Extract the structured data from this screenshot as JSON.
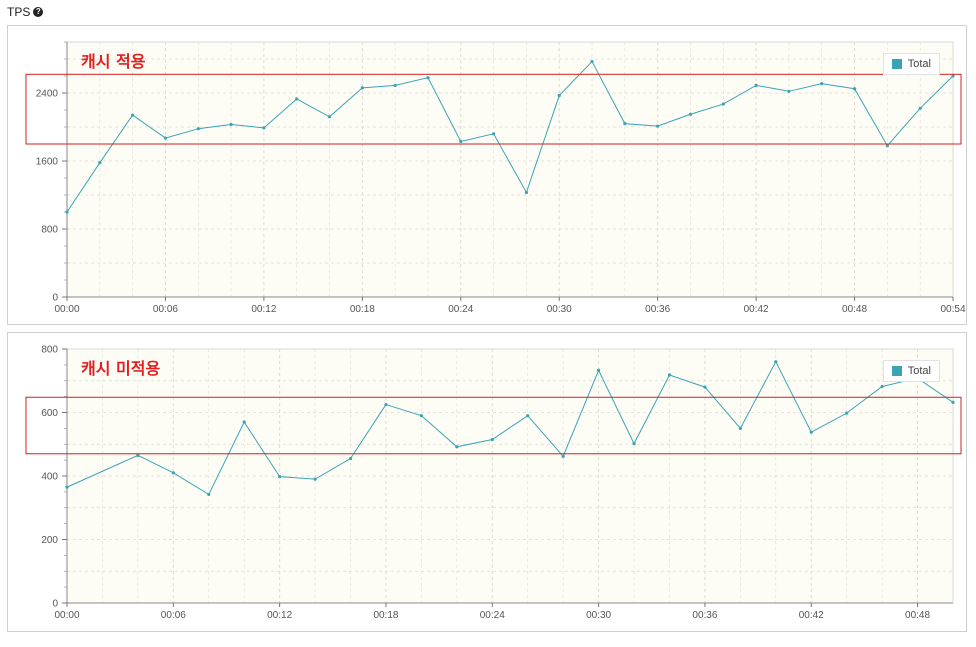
{
  "header": {
    "title": "TPS",
    "help_icon": "question-circle-icon"
  },
  "colors": {
    "line": "#3aa3b4",
    "annotation": "#e02020",
    "plot_bg": "#fdfdf6",
    "grid": "#dcdcd0"
  },
  "chart_data": [
    {
      "type": "line",
      "annotation": "캐시 적용",
      "legend": [
        "Total"
      ],
      "legend_position": "top-right",
      "grid": true,
      "xlabel": "",
      "ylabel": "",
      "x": [
        0,
        2,
        4,
        6,
        8,
        10,
        12,
        14,
        16,
        18,
        20,
        22,
        24,
        26,
        28,
        30,
        32,
        34,
        36,
        38,
        40,
        42,
        44,
        46,
        48,
        50,
        52,
        54
      ],
      "series": [
        {
          "name": "Total",
          "values": [
            1000,
            1580,
            2140,
            1870,
            1980,
            2030,
            1990,
            2330,
            2120,
            2460,
            2490,
            2580,
            1830,
            1920,
            1230,
            2370,
            2770,
            2040,
            2010,
            2150,
            2270,
            2490,
            2420,
            2510,
            2450,
            1780,
            2220,
            2600
          ]
        }
      ],
      "xlim": [
        0,
        54
      ],
      "ylim": [
        0,
        3000
      ],
      "yticks": [
        0,
        800,
        1600,
        2400
      ],
      "xticks": [
        0,
        6,
        12,
        18,
        24,
        30,
        36,
        42,
        48,
        54
      ],
      "xtick_labels": [
        "00:00",
        "00:06",
        "00:12",
        "00:18",
        "00:24",
        "00:30",
        "00:36",
        "00:42",
        "00:48",
        "00:54"
      ],
      "highlight_range": [
        1800,
        2620
      ]
    },
    {
      "type": "line",
      "annotation": "캐시 미적용",
      "legend": [
        "Total"
      ],
      "legend_position": "top-right",
      "grid": true,
      "xlabel": "",
      "ylabel": "",
      "x": [
        0,
        4,
        6,
        8,
        10,
        12,
        14,
        16,
        18,
        20,
        22,
        24,
        26,
        28,
        30,
        32,
        34,
        36,
        38,
        40,
        42,
        44,
        46,
        48,
        50
      ],
      "series": [
        {
          "name": "Total",
          "values": [
            365,
            465,
            410,
            342,
            570,
            398,
            390,
            455,
            625,
            590,
            492,
            515,
            590,
            462,
            733,
            502,
            718,
            680,
            550,
            760,
            538,
            598,
            682,
            708,
            632
          ]
        }
      ],
      "xlim": [
        0,
        50
      ],
      "ylim": [
        0,
        800
      ],
      "yticks": [
        0,
        200,
        400,
        600,
        800
      ],
      "xticks": [
        0,
        6,
        12,
        18,
        24,
        30,
        36,
        42,
        48
      ],
      "xtick_labels": [
        "00:00",
        "00:06",
        "00:12",
        "00:18",
        "00:24",
        "00:30",
        "00:36",
        "00:42",
        "00:48"
      ],
      "highlight_range": [
        470,
        648
      ]
    }
  ]
}
